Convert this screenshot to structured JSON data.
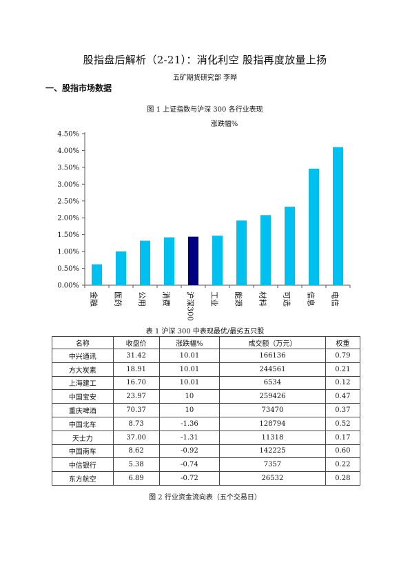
{
  "doc": {
    "title": "股指盘后解析（2-21）：消化利空 股指再度放量上扬",
    "author": "五矿期货研究部    李晔",
    "section1": "一、股指市场数据",
    "figure1_caption": "图 1    上证指数与沪深 300 各行业表现",
    "table1_caption": "表 1    沪深 300 中表现最优/最劣五只股",
    "figure2_caption": "图 2    行业资金流向表（五个交易日）"
  },
  "chart_data": {
    "type": "bar",
    "title": "涨跌幅%",
    "categories": [
      "金融",
      "医药",
      "公用",
      "消费",
      "沪深300",
      "工业",
      "能源",
      "材料",
      "可选",
      "信息",
      "电信"
    ],
    "values": [
      0.62,
      1.0,
      1.32,
      1.42,
      1.44,
      1.47,
      1.92,
      2.08,
      2.33,
      3.46,
      4.1
    ],
    "ylim": [
      0,
      4.5
    ],
    "yticks": [
      "0.00%",
      "0.50%",
      "1.00%",
      "1.50%",
      "2.00%",
      "2.50%",
      "3.00%",
      "3.50%",
      "4.00%",
      "4.50%"
    ],
    "colors": {
      "default": "#00c0f0",
      "highlight": "#000080"
    },
    "highlight_category": "沪深300",
    "grid": false
  },
  "table": {
    "headers": [
      "名称",
      "收盘价",
      "涨跌幅%",
      "成交额（万元）",
      "权重"
    ],
    "rows": [
      [
        "中兴通讯",
        "31.42",
        "10.01",
        "166136",
        "0.79"
      ],
      [
        "方大炭素",
        "18.91",
        "10.01",
        "244561",
        "0.21"
      ],
      [
        "上海建工",
        "16.70",
        "10.01",
        "6534",
        "0.12"
      ],
      [
        "中国宝安",
        "23.97",
        "10",
        "259426",
        "0.47"
      ],
      [
        "重庆啤酒",
        "70.37",
        "10",
        "73470",
        "0.37"
      ],
      [
        "中国北车",
        "8.73",
        "-1.36",
        "128794",
        "0.52"
      ],
      [
        "天士力",
        "37.00",
        "-1.31",
        "11318",
        "0.17"
      ],
      [
        "中国南车",
        "8.62",
        "-0.92",
        "142225",
        "0.60"
      ],
      [
        "中信银行",
        "5.38",
        "-0.74",
        "7357",
        "0.22"
      ],
      [
        "东方航空",
        "6.89",
        "-0.72",
        "26532",
        "0.28"
      ]
    ]
  }
}
